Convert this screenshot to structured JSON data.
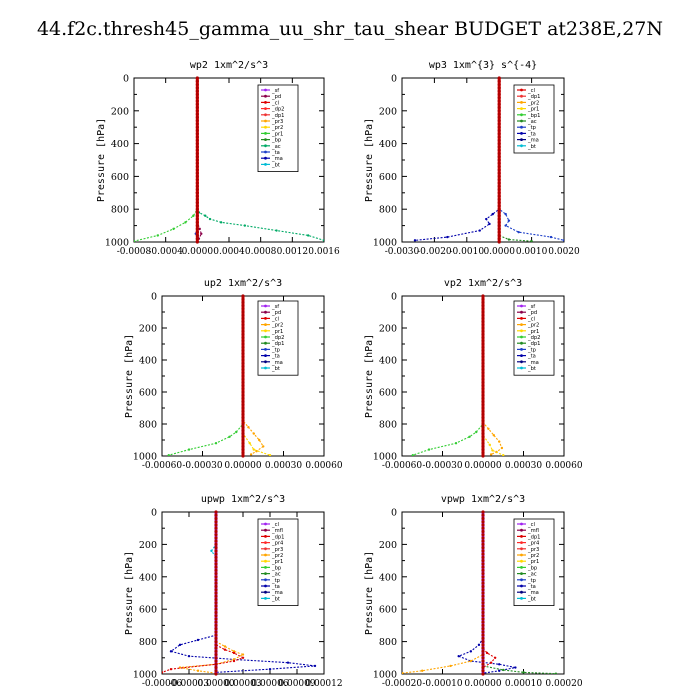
{
  "figure_title": "44.f2c.thresh45_gamma_uu_shr_tau_shear  BUDGET at238E,27N",
  "chart_data": [
    {
      "type": "line",
      "title": "wp2   1xm^2/s^3",
      "ylabel": "Pressure [hPa]",
      "xlim": [
        -0.0008,
        0.0016
      ],
      "ylim": [
        1000,
        0
      ],
      "xticks": [
        "-0.0008",
        "-0.0004",
        "0.0000",
        "0.0004",
        "0.0008",
        "0.0012",
        "0.0016"
      ],
      "yticks": [
        "0",
        "200",
        "400",
        "600",
        "800",
        "1000"
      ],
      "legend": [
        "_sf",
        "_pd",
        "_cl",
        "_dp2",
        "_dp1",
        "_pr3",
        "_pr2",
        "_pr1",
        "_bp",
        "_ac",
        "_ta",
        "_ma",
        "_bt"
      ],
      "colors": [
        "#a020f0",
        "#8b004a",
        "#dd0000",
        "#ff2a2a",
        "#ee3333",
        "#ffa500",
        "#ffd700",
        "#32cd32",
        "#228b22",
        "#00aa66",
        "#1e40c8",
        "#0000aa",
        "#00bcd4"
      ],
      "series": [
        {
          "name": "_ac",
          "values": [
            [
              0,
              0
            ],
            [
              0,
              600
            ],
            [
              0,
              800
            ],
            [
              2e-05,
              820
            ],
            [
              0.0001,
              840
            ],
            [
              0.00016,
              860
            ],
            [
              0.0003,
              880
            ],
            [
              0.0006,
              900
            ],
            [
              0.001,
              930
            ],
            [
              0.0014,
              960
            ],
            [
              0.0016,
              990
            ]
          ]
        },
        {
          "name": "_pr1",
          "values": [
            [
              0,
              0
            ],
            [
              0,
              800
            ],
            [
              -5e-05,
              840
            ],
            [
              -0.00015,
              880
            ],
            [
              -0.0003,
              920
            ],
            [
              -0.0005,
              960
            ],
            [
              -0.0008,
              995
            ]
          ]
        },
        {
          "name": "_ta",
          "values": [
            [
              0,
              0
            ],
            [
              0,
              900
            ],
            [
              -2e-05,
              950
            ],
            [
              1e-05,
              975
            ],
            [
              0,
              1000
            ]
          ]
        },
        {
          "name": "_pd",
          "values": [
            [
              0,
              0
            ],
            [
              0,
              880
            ],
            [
              3e-05,
              920
            ],
            [
              5e-05,
              950
            ],
            [
              2e-05,
              980
            ],
            [
              0,
              1000
            ]
          ]
        },
        {
          "name": "_cl",
          "values": [
            [
              0,
              0
            ],
            [
              0,
              700
            ],
            [
              0,
              1000
            ]
          ]
        }
      ]
    },
    {
      "type": "line",
      "title": "wp3   1xm^{3} s^{-4}",
      "ylabel": "Pressure [hPa]",
      "xlim": [
        -0.003,
        0.002
      ],
      "ylim": [
        1000,
        0
      ],
      "xticks": [
        "-0.0030",
        "-0.0020",
        "-0.0010",
        "0.0000",
        "0.0010",
        "0.0020"
      ],
      "yticks": [
        "0",
        "200",
        "400",
        "600",
        "800",
        "1000"
      ],
      "legend": [
        "_cl",
        "_dp1",
        "_pr2",
        "_pr1",
        "_bp1",
        "_ac",
        "_tp",
        "_ta",
        "_ma",
        "_bt"
      ],
      "colors": [
        "#dd0000",
        "#ee3333",
        "#ffa500",
        "#ffd700",
        "#32cd32",
        "#228b22",
        "#1e40c8",
        "#0000aa",
        "#000080",
        "#00bcd4"
      ],
      "series": [
        {
          "name": "_ta",
          "values": [
            [
              0,
              0
            ],
            [
              0,
              800
            ],
            [
              -0.0002,
              830
            ],
            [
              -0.0004,
              860
            ],
            [
              -0.0003,
              890
            ],
            [
              -0.0006,
              930
            ],
            [
              -0.0016,
              970
            ],
            [
              -0.0026,
              990
            ]
          ]
        },
        {
          "name": "_tp",
          "values": [
            [
              0,
              0
            ],
            [
              0,
              800
            ],
            [
              0.0002,
              830
            ],
            [
              0.0003,
              870
            ],
            [
              0.0002,
              900
            ],
            [
              0.0006,
              940
            ],
            [
              0.0016,
              970
            ],
            [
              0.002,
              990
            ]
          ]
        },
        {
          "name": "_ac",
          "values": [
            [
              0,
              0
            ],
            [
              0,
              960
            ],
            [
              0.0003,
              985
            ],
            [
              0.001,
              995
            ]
          ]
        },
        {
          "name": "_cl",
          "values": [
            [
              0,
              0
            ],
            [
              0,
              1000
            ]
          ]
        }
      ]
    },
    {
      "type": "line",
      "title": "up2   1xm^2/s^3",
      "ylabel": "Pressure [hPa]",
      "xlim": [
        -0.0006,
        0.0006
      ],
      "ylim": [
        1000,
        0
      ],
      "xticks": [
        "-0.00060",
        "-0.00030",
        "0.00000",
        "0.00030",
        "0.00060"
      ],
      "yticks": [
        "0",
        "200",
        "400",
        "600",
        "800",
        "1000"
      ],
      "legend": [
        "_sf",
        "_pd",
        "_cl",
        "_pr2",
        "_pr1",
        "_dp2",
        "_dp1",
        "_tp",
        "_ta",
        "_ma",
        "_bt"
      ],
      "colors": [
        "#a020f0",
        "#8b004a",
        "#dd0000",
        "#ffa500",
        "#ffd700",
        "#32cd32",
        "#228b22",
        "#1e40c8",
        "#0000aa",
        "#000080",
        "#00bcd4"
      ],
      "series": [
        {
          "name": "_dp2",
          "values": [
            [
              0,
              0
            ],
            [
              0,
              800
            ],
            [
              -5e-05,
              850
            ],
            [
              -0.0001,
              880
            ],
            [
              -0.0002,
              920
            ],
            [
              -0.0004,
              960
            ],
            [
              -0.00055,
              995
            ]
          ]
        },
        {
          "name": "_pr2",
          "values": [
            [
              0,
              0
            ],
            [
              0,
              780
            ],
            [
              4e-05,
              820
            ],
            [
              8e-05,
              860
            ],
            [
              0.00012,
              900
            ],
            [
              0.00015,
              940
            ],
            [
              0.0001,
              970
            ],
            [
              6e-05,
              990
            ]
          ]
        },
        {
          "name": "_pr1",
          "values": [
            [
              0,
              0
            ],
            [
              0,
              860
            ],
            [
              5e-05,
              920
            ],
            [
              8e-05,
              960
            ],
            [
              0.0002,
              995
            ]
          ]
        },
        {
          "name": "_cl",
          "values": [
            [
              0,
              0
            ],
            [
              0,
              1000
            ]
          ]
        }
      ]
    },
    {
      "type": "line",
      "title": "vp2   1xm^2/s^3",
      "ylabel": "Pressure [hPa]",
      "xlim": [
        -0.0006,
        0.0006
      ],
      "ylim": [
        1000,
        0
      ],
      "xticks": [
        "-0.00060",
        "-0.00030",
        "0.00000",
        "0.00030",
        "0.00060"
      ],
      "yticks": [
        "0",
        "200",
        "400",
        "600",
        "800",
        "1000"
      ],
      "legend": [
        "_sf",
        "_pd",
        "_cl",
        "_pr2",
        "_pr1",
        "_dp2",
        "_dp1",
        "_tp",
        "_ta",
        "_ma",
        "_bt"
      ],
      "colors": [
        "#a020f0",
        "#8b004a",
        "#dd0000",
        "#ffa500",
        "#ffd700",
        "#32cd32",
        "#228b22",
        "#1e40c8",
        "#0000aa",
        "#000080",
        "#00bcd4"
      ],
      "series": [
        {
          "name": "_dp2",
          "values": [
            [
              0,
              0
            ],
            [
              0,
              800
            ],
            [
              -5e-05,
              850
            ],
            [
              -0.0001,
              880
            ],
            [
              -0.0002,
              920
            ],
            [
              -0.0004,
              960
            ],
            [
              -0.00052,
              995
            ]
          ]
        },
        {
          "name": "_pr2",
          "values": [
            [
              0,
              0
            ],
            [
              0,
              790
            ],
            [
              4e-05,
              830
            ],
            [
              8e-05,
              870
            ],
            [
              0.00012,
              910
            ],
            [
              0.00014,
              950
            ],
            [
              0.0001,
              975
            ],
            [
              6e-05,
              990
            ]
          ]
        },
        {
          "name": "_pr1",
          "values": [
            [
              0,
              0
            ],
            [
              0,
              870
            ],
            [
              5e-05,
              930
            ],
            [
              7e-05,
              965
            ],
            [
              0.00015,
              995
            ]
          ]
        },
        {
          "name": "_cl",
          "values": [
            [
              0,
              0
            ],
            [
              0,
              1000
            ]
          ]
        }
      ]
    },
    {
      "type": "line",
      "title": "upwp   1xm^2/s^3",
      "ylabel": "Pressure [hPa]",
      "xlim": [
        -6e-05,
        0.00012
      ],
      "ylim": [
        1000,
        0
      ],
      "xticks": [
        "-0.00006",
        "-0.00003",
        "0.00000",
        "0.00003",
        "0.00006",
        "0.00009",
        "0.00012"
      ],
      "yticks": [
        "0",
        "200",
        "400",
        "600",
        "800",
        "1000"
      ],
      "legend": [
        "_cl",
        "_mfl",
        "_dp1",
        "_pr4",
        "_pr3",
        "_pr2",
        "_pr1",
        "_bp",
        "_ac",
        "_tp",
        "_ta",
        "_ma",
        "_bt"
      ],
      "colors": [
        "#a020f0",
        "#8b004a",
        "#dd0000",
        "#ff2a2a",
        "#ee3333",
        "#ffa500",
        "#ffd700",
        "#32cd32",
        "#228b22",
        "#1e40c8",
        "#0000aa",
        "#000080",
        "#00bcd4"
      ],
      "series": [
        {
          "name": "_ta",
          "values": [
            [
              0,
              0
            ],
            [
              0,
              760
            ],
            [
              -2e-05,
              790
            ],
            [
              -4e-05,
              820
            ],
            [
              -5e-05,
              860
            ],
            [
              -3e-05,
              890
            ],
            [
              2e-05,
              910
            ],
            [
              8e-05,
              930
            ],
            [
              0.00011,
              950
            ],
            [
              6e-05,
              970
            ],
            [
              0,
              990
            ]
          ]
        },
        {
          "name": "_pr2",
          "values": [
            [
              0,
              0
            ],
            [
              0,
              800
            ],
            [
              1e-05,
              830
            ],
            [
              2e-05,
              860
            ],
            [
              3e-05,
              880
            ],
            [
              2e-05,
              910
            ],
            [
              0,
              940
            ],
            [
              -4e-05,
              960
            ],
            [
              -2e-05,
              980
            ],
            [
              0,
              995
            ]
          ]
        },
        {
          "name": "_dp1",
          "values": [
            [
              0,
              0
            ],
            [
              0,
              820
            ],
            [
              1e-05,
              850
            ],
            [
              2e-05,
              870
            ],
            [
              3e-05,
              900
            ],
            [
              2e-05,
              920
            ],
            [
              0,
              940
            ],
            [
              -5e-05,
              970
            ],
            [
              -6e-05,
              990
            ]
          ]
        },
        {
          "name": "_bt",
          "values": [
            [
              0,
              0
            ],
            [
              0,
              200
            ],
            [
              -5e-06,
              240
            ],
            [
              0,
              280
            ],
            [
              0,
              1000
            ]
          ]
        },
        {
          "name": "_cl",
          "values": [
            [
              0,
              0
            ],
            [
              0,
              1000
            ]
          ]
        }
      ]
    },
    {
      "type": "line",
      "title": "vpwp   1xm^2/s^3",
      "ylabel": "Pressure [hPa]",
      "xlim": [
        -0.0002,
        0.0002
      ],
      "ylim": [
        1000,
        0
      ],
      "xticks": [
        "-0.00020",
        "-0.00010",
        "0.00000",
        "0.00010",
        "0.00020"
      ],
      "yticks": [
        "0",
        "200",
        "400",
        "600",
        "800",
        "1000"
      ],
      "legend": [
        "_cl",
        "_mfl",
        "_dp1",
        "_pr4",
        "_pr3",
        "_pr2",
        "_pr1",
        "_bp",
        "_ac",
        "_tp",
        "_ta",
        "_ma",
        "_bt"
      ],
      "colors": [
        "#a020f0",
        "#8b004a",
        "#dd0000",
        "#ff2a2a",
        "#ee3333",
        "#ffa500",
        "#ffd700",
        "#32cd32",
        "#228b22",
        "#1e40c8",
        "#0000aa",
        "#000080",
        "#00bcd4"
      ],
      "series": [
        {
          "name": "_ta",
          "values": [
            [
              0,
              0
            ],
            [
              0,
              780
            ],
            [
              -1e-05,
              820
            ],
            [
              -3e-05,
              860
            ],
            [
              -6e-05,
              890
            ],
            [
              -3e-05,
              920
            ],
            [
              4e-05,
              940
            ],
            [
              8e-05,
              960
            ],
            [
              4e-05,
              980
            ],
            [
              0,
              995
            ]
          ]
        },
        {
          "name": "_pr2",
          "values": [
            [
              0,
              0
            ],
            [
              0,
              880
            ],
            [
              -3e-05,
              920
            ],
            [
              -8e-05,
              950
            ],
            [
              -0.00015,
              980
            ],
            [
              -0.0002,
              995
            ]
          ]
        },
        {
          "name": "_ac",
          "values": [
            [
              0,
              0
            ],
            [
              0,
              950
            ],
            [
              5e-05,
              975
            ],
            [
              0.0001,
              990
            ],
            [
              0.00018,
              998
            ]
          ]
        },
        {
          "name": "_dp1",
          "values": [
            [
              0,
              0
            ],
            [
              0,
              840
            ],
            [
              1e-05,
              870
            ],
            [
              3e-05,
              900
            ],
            [
              2e-05,
              930
            ],
            [
              0,
              960
            ]
          ]
        },
        {
          "name": "_cl",
          "values": [
            [
              0,
              0
            ],
            [
              0,
              1000
            ]
          ]
        }
      ]
    }
  ]
}
